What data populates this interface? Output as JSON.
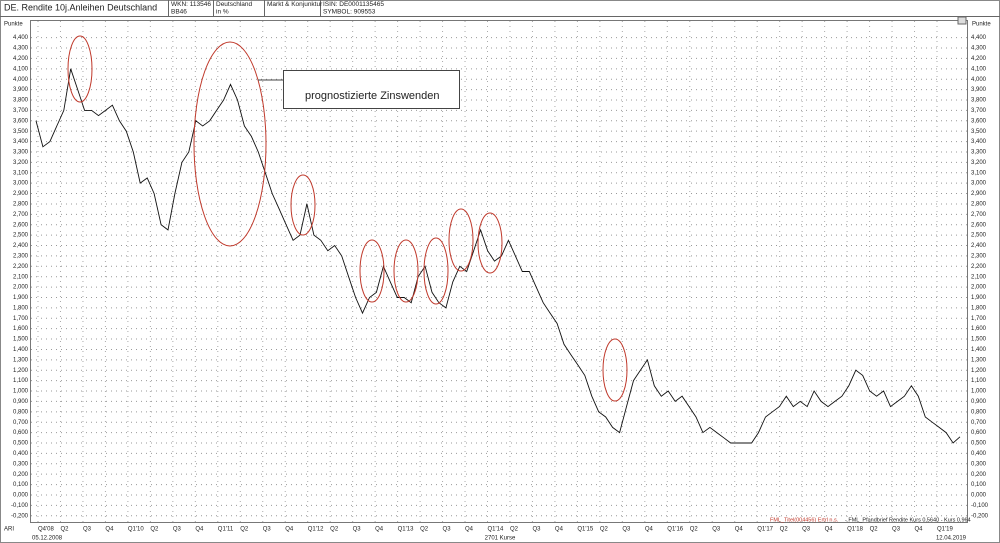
{
  "header": {
    "title": "DE. Rendite 10j.Anleihen Deutschland",
    "wkn": "WKN: 113546",
    "code": "BB46",
    "country": "Deutschland",
    "unit": "in %",
    "category": "Markt & Konjunktur",
    "isin": "ISIN: DE0001135465",
    "symbol": "SYMBOL: 909553"
  },
  "chart_data": {
    "type": "line",
    "y_axis_label": "Punkte",
    "annotation": "prognostizierte Zinswenden",
    "start_date": "05.12.2008",
    "end_date": "12.04.2019",
    "count_label": "2701 Kurse",
    "corner_label": "ARI",
    "legend": [
      "FML_Titel(004456) Ertrl n.s.",
      "- FML_Pfandbrief Rendite Kurs 0,5640 - Kurs 0,964"
    ],
    "x_labels": [
      "Q4'08",
      "Q2",
      "Q3",
      "Q4",
      "Q1'10",
      "Q2",
      "Q3",
      "Q4",
      "Q1'11",
      "Q2",
      "Q3",
      "Q4",
      "Q1'12",
      "Q2",
      "Q3",
      "Q4",
      "Q1'13",
      "Q2",
      "Q3",
      "Q4",
      "Q1'14",
      "Q2",
      "Q3",
      "Q4",
      "Q1'15",
      "Q2",
      "Q3",
      "Q4",
      "Q1'16",
      "Q2",
      "Q3",
      "Q4",
      "Q1'17",
      "Q2",
      "Q3",
      "Q4",
      "Q1'18",
      "Q2",
      "Q3",
      "Q4",
      "Q1'19"
    ],
    "series": [
      {
        "color": "#111111",
        "values": [
          3.6,
          3.35,
          3.4,
          3.55,
          3.7,
          4.1,
          3.9,
          3.7,
          3.7,
          3.65,
          3.7,
          3.75,
          3.6,
          3.5,
          3.3,
          3.0,
          3.05,
          2.9,
          2.6,
          2.55,
          2.9,
          3.2,
          3.3,
          3.6,
          3.55,
          3.6,
          3.7,
          3.8,
          3.95,
          3.8,
          3.55,
          3.45,
          3.3,
          3.1,
          2.9,
          2.75,
          2.6,
          2.45,
          2.5,
          2.8,
          2.5,
          2.45,
          2.35,
          2.4,
          2.3,
          2.1,
          1.9,
          1.75,
          1.9,
          1.95,
          2.2,
          2.05,
          1.9,
          1.9,
          1.85,
          2.1,
          2.2,
          1.95,
          1.85,
          1.8,
          2.05,
          2.2,
          2.15,
          2.35,
          2.55,
          2.35,
          2.25,
          2.3,
          2.45,
          2.3,
          2.15,
          2.15,
          2.0,
          1.85,
          1.75,
          1.65,
          1.45,
          1.35,
          1.25,
          1.15,
          0.95,
          0.8,
          0.75,
          0.65,
          0.6,
          0.85,
          1.1,
          1.2,
          1.3,
          1.05,
          0.95,
          1.0,
          0.9,
          0.95,
          0.85,
          0.75,
          0.6,
          0.65,
          0.6,
          0.55,
          0.5,
          0.5,
          0.5,
          0.5,
          0.6,
          0.75,
          0.8,
          0.85,
          0.95,
          0.85,
          0.9,
          0.85,
          1.0,
          0.9,
          0.85,
          0.9,
          0.95,
          1.05,
          1.2,
          1.15,
          1.0,
          0.95,
          1.0,
          0.85,
          0.9,
          0.95,
          1.05,
          0.95,
          0.75,
          0.7,
          0.65,
          0.6,
          0.5,
          0.56
        ]
      }
    ],
    "ylim": [
      -0.26,
      4.56
    ],
    "yticks": [
      {
        "value": 4.4,
        "label": "4,400"
      },
      {
        "value": 4.3,
        "label": "4,300"
      },
      {
        "value": 4.2,
        "label": "4,200"
      },
      {
        "value": 4.1,
        "label": "4,100"
      },
      {
        "value": 4.0,
        "label": "4,000"
      },
      {
        "value": 3.9,
        "label": "3,900"
      },
      {
        "value": 3.8,
        "label": "3,800"
      },
      {
        "value": 3.7,
        "label": "3,700"
      },
      {
        "value": 3.6,
        "label": "3,600"
      },
      {
        "value": 3.5,
        "label": "3,500"
      },
      {
        "value": 3.4,
        "label": "3,400"
      },
      {
        "value": 3.3,
        "label": "3,300"
      },
      {
        "value": 3.2,
        "label": "3,200"
      },
      {
        "value": 3.1,
        "label": "3,100"
      },
      {
        "value": 3.0,
        "label": "3,000"
      },
      {
        "value": 2.9,
        "label": "2,900"
      },
      {
        "value": 2.8,
        "label": "2,800"
      },
      {
        "value": 2.7,
        "label": "2,700"
      },
      {
        "value": 2.6,
        "label": "2,600"
      },
      {
        "value": 2.5,
        "label": "2,500"
      },
      {
        "value": 2.4,
        "label": "2,400"
      },
      {
        "value": 2.3,
        "label": "2,300"
      },
      {
        "value": 2.2,
        "label": "2,200"
      },
      {
        "value": 2.1,
        "label": "2,100"
      },
      {
        "value": 2.0,
        "label": "2,000"
      },
      {
        "value": 1.9,
        "label": "1,900"
      },
      {
        "value": 1.8,
        "label": "1,800"
      },
      {
        "value": 1.7,
        "label": "1,700"
      },
      {
        "value": 1.6,
        "label": "1,600"
      },
      {
        "value": 1.5,
        "label": "1,500"
      },
      {
        "value": 1.4,
        "label": "1,400"
      },
      {
        "value": 1.3,
        "label": "1,300"
      },
      {
        "value": 1.2,
        "label": "1,200"
      },
      {
        "value": 1.1,
        "label": "1,100"
      },
      {
        "value": 1.0,
        "label": "1,000"
      },
      {
        "value": 0.9,
        "label": "0,900"
      },
      {
        "value": 0.8,
        "label": "0,800"
      },
      {
        "value": 0.7,
        "label": "0,700"
      },
      {
        "value": 0.6,
        "label": "0,600"
      },
      {
        "value": 0.5,
        "label": "0,500"
      },
      {
        "value": 0.4,
        "label": "0,400"
      },
      {
        "value": 0.3,
        "label": "0,300"
      },
      {
        "value": 0.2,
        "label": "0,200"
      },
      {
        "value": 0.1,
        "label": "0,100"
      },
      {
        "value": 0,
        "label": "0,000"
      },
      {
        "value": -0.1,
        "label": "-0,100"
      },
      {
        "value": -0.2,
        "label": "-0,200"
      }
    ],
    "grid": true
  }
}
